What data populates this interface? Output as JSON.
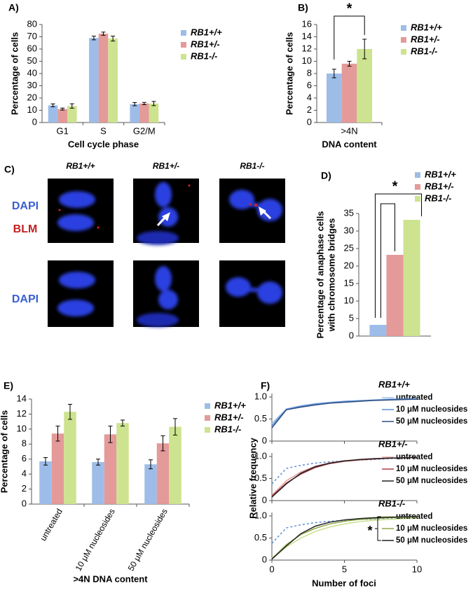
{
  "micrographs": {
    "panel_label": "C)",
    "columns": [
      "RB1+/+",
      "RB1+/-",
      "RB1-/-"
    ],
    "row_labels": [
      [
        "DAPI",
        "BLM"
      ],
      [
        "DAPI"
      ]
    ]
  },
  "chart_data": [
    {
      "type": "bar",
      "panel_label": "A)",
      "ylabel": [
        "Percentage of cells"
      ],
      "xlabel": "Cell cycle phase",
      "categories": [
        "G1",
        "S",
        "G2/M"
      ],
      "ylim": [
        0,
        80
      ],
      "yticks": [
        0,
        10,
        20,
        30,
        40,
        50,
        60,
        70,
        80
      ],
      "series": [
        {
          "name": "RB1+/+",
          "color": "#9dbde8",
          "values": [
            14,
            69,
            15
          ],
          "errors": [
            1.2,
            1.5,
            1.3
          ]
        },
        {
          "name": "RB1+/-",
          "color": "#e39a99",
          "values": [
            11,
            72.5,
            15.5
          ],
          "errors": [
            0.8,
            1.3,
            0.9
          ]
        },
        {
          "name": "RB1-/-",
          "color": "#cde38f",
          "values": [
            13.5,
            68.5,
            15.5
          ],
          "errors": [
            1.8,
            2.0,
            1.7
          ]
        }
      ]
    },
    {
      "type": "bar",
      "panel_label": "B)",
      "ylabel": [
        "Percentage of cells"
      ],
      "xlabel": "DNA content",
      "categories": [
        ">4N"
      ],
      "ylim": [
        0,
        16
      ],
      "yticks": [
        0,
        2,
        4,
        6,
        8,
        10,
        12,
        14,
        16
      ],
      "annotation": "*",
      "series": [
        {
          "name": "RB1+/+",
          "color": "#9dbde8",
          "values": [
            8
          ],
          "errors": [
            0.7
          ]
        },
        {
          "name": "RB1+/-",
          "color": "#e39a99",
          "values": [
            9.6
          ],
          "errors": [
            0.4
          ]
        },
        {
          "name": "RB1-/-",
          "color": "#cde38f",
          "values": [
            12
          ],
          "errors": [
            1.6
          ]
        }
      ]
    },
    {
      "type": "bar",
      "panel_label": "D)",
      "ylabel": [
        "Percentage of anaphase cells",
        "with chromosome bridges"
      ],
      "categories": [
        null
      ],
      "ylim": [
        0,
        35
      ],
      "yticks": [
        0,
        5,
        10,
        15,
        20,
        25,
        30,
        35
      ],
      "annotation": "*",
      "series": [
        {
          "name": "RB1+/+",
          "color": "#9dbde8",
          "values": [
            3.2
          ]
        },
        {
          "name": "RB1+/-",
          "color": "#e39a99",
          "values": [
            23.2
          ]
        },
        {
          "name": "RB1-/-",
          "color": "#cde38f",
          "values": [
            33.2
          ]
        }
      ]
    },
    {
      "type": "bar",
      "panel_label": "E)",
      "ylabel": [
        "Percentage of cells"
      ],
      "xlabel": ">4N DNA content",
      "categories": [
        "untreated",
        "10 μM nucleosides",
        "50 μM nucleosides"
      ],
      "ylim": [
        0,
        14
      ],
      "yticks": [
        0,
        2,
        4,
        6,
        8,
        10,
        12,
        14
      ],
      "series": [
        {
          "name": "RB1+/+",
          "color": "#9dbde8",
          "values": [
            5.7,
            5.6,
            5.3
          ],
          "errors": [
            0.5,
            0.4,
            0.6
          ]
        },
        {
          "name": "RB1+/-",
          "color": "#e39a99",
          "values": [
            9.4,
            9.3,
            8.1
          ],
          "errors": [
            1.0,
            1.1,
            1.0
          ]
        },
        {
          "name": "RB1-/-",
          "color": "#cde38f",
          "values": [
            12.3,
            10.8,
            10.3
          ],
          "errors": [
            1.0,
            0.4,
            1.1
          ]
        }
      ]
    },
    {
      "type": "line",
      "panel_label": "F)",
      "ylabel": "Relative frequency",
      "xlabel": "Number of foci",
      "x": [
        0,
        1,
        2,
        3,
        4,
        5,
        6,
        7,
        8,
        9,
        10
      ],
      "xlim": [
        0,
        10
      ],
      "xticks": [
        0,
        5,
        10
      ],
      "ylim": [
        0,
        1
      ],
      "yticks": [
        0,
        0.5,
        {
          "value": 1,
          "label": "1.0"
        }
      ],
      "panels": [
        {
          "title": "RB1+/+",
          "series": [
            {
              "name": "untreated",
              "color": "#9fc3ea",
              "values": [
                0.4,
                0.73,
                0.8,
                0.85,
                0.88,
                0.9,
                0.92,
                0.93,
                0.95,
                0.96,
                0.97
              ]
            },
            {
              "name": "10 μM nucleosides",
              "color": "#5b8fd4",
              "values": [
                0.35,
                0.72,
                0.79,
                0.84,
                0.87,
                0.9,
                0.91,
                0.93,
                0.94,
                0.95,
                0.96
              ]
            },
            {
              "name": "50 μM nucleosides",
              "color": "#2f4f80",
              "values": [
                0.3,
                0.71,
                0.77,
                0.82,
                0.86,
                0.88,
                0.9,
                0.92,
                0.93,
                0.94,
                0.95
              ]
            }
          ]
        },
        {
          "title": "RB1+/-",
          "series": [
            {
              "color": "#5b8fd4",
              "dashed": true,
              "values": [
                0.38,
                0.73,
                0.8,
                0.85,
                0.88,
                0.9,
                0.92,
                0.93,
                0.95,
                0.96,
                0.97
              ]
            },
            {
              "name": "untreated",
              "color": "#e6a0a0",
              "values": [
                0.12,
                0.45,
                0.65,
                0.78,
                0.86,
                0.9,
                0.93,
                0.95,
                0.96,
                0.97,
                0.98
              ]
            },
            {
              "name": "10 μM nucleosides",
              "color": "#b0404a",
              "values": [
                0.1,
                0.4,
                0.6,
                0.75,
                0.84,
                0.89,
                0.92,
                0.94,
                0.96,
                0.97,
                0.98
              ]
            },
            {
              "name": "50 μM nucleosides",
              "color": "#222222",
              "values": [
                0.08,
                0.38,
                0.62,
                0.77,
                0.85,
                0.9,
                0.93,
                0.95,
                0.96,
                0.97,
                0.98
              ]
            }
          ]
        },
        {
          "title": "RB1-/-",
          "annotation": "*",
          "series": [
            {
              "color": "#5b8fd4",
              "dashed": true,
              "values": [
                0.38,
                0.73,
                0.8,
                0.85,
                0.88,
                0.9,
                0.92,
                0.93,
                0.95,
                0.96,
                0.97
              ]
            },
            {
              "name": "untreated",
              "color": "#c8e08a",
              "values": [
                0.05,
                0.3,
                0.5,
                0.65,
                0.75,
                0.82,
                0.87,
                0.9,
                0.92,
                0.94,
                0.95
              ]
            },
            {
              "name": "10 μM nucleosides",
              "color": "#8fa84a",
              "values": [
                0.03,
                0.35,
                0.58,
                0.72,
                0.82,
                0.88,
                0.92,
                0.94,
                0.96,
                0.97,
                0.98
              ]
            },
            {
              "name": "50 μM nucleosides",
              "color": "#222222",
              "values": [
                0.02,
                0.32,
                0.6,
                0.77,
                0.86,
                0.91,
                0.94,
                0.96,
                0.97,
                0.98,
                0.99
              ]
            }
          ]
        }
      ]
    }
  ]
}
